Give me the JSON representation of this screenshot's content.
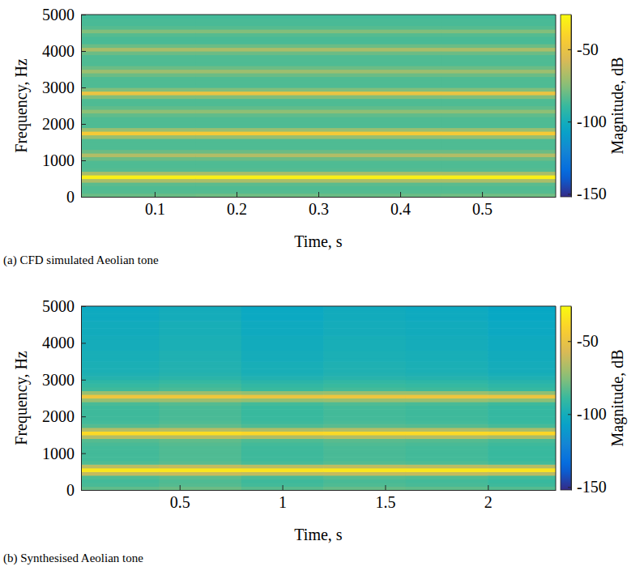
{
  "chart_data": [
    {
      "type": "heatmap",
      "caption": "(a) CFD simulated Aeolian tone",
      "x_label": "Time, s",
      "y_label": "Frequency, Hz",
      "xlim": [
        0.01,
        0.59
      ],
      "xticks": [
        0.1,
        0.2,
        0.3,
        0.4,
        0.5
      ],
      "ylim": [
        0,
        5000
      ],
      "yticks": [
        0,
        1000,
        2000,
        3000,
        4000,
        5000
      ],
      "x_edges": [
        0.01,
        0.15,
        0.3,
        0.45,
        0.59
      ],
      "y_edges": [
        0,
        100,
        200,
        300,
        400,
        500,
        600,
        700,
        800,
        900,
        1000,
        1100,
        1200,
        1300,
        1400,
        1500,
        1600,
        1700,
        1800,
        1900,
        2000,
        2100,
        2200,
        2300,
        2400,
        2500,
        2600,
        2700,
        2800,
        2900,
        3000,
        3100,
        3200,
        3300,
        3400,
        3500,
        3600,
        3700,
        3800,
        3900,
        4000,
        4100,
        4200,
        4300,
        4400,
        4500,
        4600,
        4700,
        4800,
        4900,
        5000
      ],
      "z": [
        [
          -80,
          -84,
          -85,
          -83,
          -68,
          -30,
          -68,
          -84,
          -85,
          -85,
          -80,
          -66,
          -80,
          -85,
          -85,
          -85,
          -72,
          -45,
          -72,
          -85,
          -85,
          -85,
          -82,
          -74,
          -82,
          -85,
          -85,
          -76,
          -50,
          -76,
          -85,
          -85,
          -85,
          -80,
          -71,
          -80,
          -85,
          -85,
          -85,
          -80,
          -68,
          -80,
          -86,
          -86,
          -84,
          -76,
          -84,
          -86,
          -86,
          -87
        ],
        [
          -79,
          -84,
          -85,
          -83,
          -68,
          -30,
          -68,
          -84,
          -85,
          -85,
          -80,
          -66,
          -80,
          -85,
          -85,
          -85,
          -72,
          -45,
          -72,
          -85,
          -85,
          -85,
          -82,
          -74,
          -82,
          -85,
          -85,
          -76,
          -50,
          -76,
          -85,
          -85,
          -85,
          -80,
          -71,
          -80,
          -85,
          -85,
          -85,
          -80,
          -68,
          -80,
          -86,
          -86,
          -84,
          -76,
          -84,
          -86,
          -86,
          -87
        ],
        [
          -80,
          -84,
          -85,
          -83,
          -68,
          -30,
          -68,
          -84,
          -85,
          -85,
          -80,
          -66,
          -80,
          -85,
          -85,
          -85,
          -72,
          -45,
          -72,
          -85,
          -85,
          -85,
          -82,
          -74,
          -82,
          -85,
          -85,
          -76,
          -50,
          -76,
          -85,
          -85,
          -85,
          -80,
          -71,
          -80,
          -85,
          -85,
          -85,
          -80,
          -68,
          -80,
          -86,
          -86,
          -84,
          -76,
          -84,
          -86,
          -86,
          -87
        ],
        [
          -79,
          -84,
          -85,
          -83,
          -68,
          -30,
          -68,
          -84,
          -85,
          -85,
          -80,
          -66,
          -80,
          -85,
          -85,
          -85,
          -72,
          -45,
          -72,
          -85,
          -85,
          -85,
          -82,
          -74,
          -82,
          -85,
          -85,
          -76,
          -50,
          -76,
          -85,
          -85,
          -85,
          -80,
          -71,
          -80,
          -85,
          -85,
          -85,
          -80,
          -68,
          -80,
          -86,
          -86,
          -84,
          -76,
          -84,
          -86,
          -86,
          -87
        ]
      ],
      "colorbar": {
        "label": "Magnitude, dB",
        "range": [
          -152,
          -26
        ],
        "ticks": [
          -50,
          -100,
          -150
        ]
      }
    },
    {
      "type": "heatmap",
      "caption": "(b) Synthesised Aeolian tone",
      "x_label": "Time, s",
      "y_label": "Frequency, Hz",
      "xlim": [
        0.02,
        2.33
      ],
      "xticks": [
        0.5,
        1,
        1.5,
        2
      ],
      "ylim": [
        0,
        5000
      ],
      "yticks": [
        0,
        1000,
        2000,
        3000,
        4000,
        5000
      ],
      "x_edges": [
        0.02,
        0.4,
        0.8,
        1.2,
        1.6,
        2.0,
        2.33
      ],
      "y_edges": [
        0,
        100,
        200,
        300,
        400,
        500,
        600,
        700,
        800,
        900,
        1000,
        1100,
        1200,
        1300,
        1400,
        1500,
        1600,
        1700,
        1800,
        1900,
        2000,
        2100,
        2200,
        2300,
        2400,
        2500,
        2600,
        2700,
        2800,
        2900,
        3000,
        3100,
        3200,
        3300,
        3400,
        3500,
        3600,
        3700,
        3800,
        3900,
        4000,
        4100,
        4200,
        4300,
        4400,
        4500,
        4600,
        4700,
        4800,
        4900,
        5000
      ],
      "z": [
        [
          -82,
          -86,
          -87,
          -85,
          -62,
          -33,
          -64,
          -85,
          -87,
          -87,
          -87,
          -87,
          -86,
          -84,
          -66,
          -38,
          -66,
          -84,
          -87,
          -88,
          -88,
          -88,
          -88,
          -86,
          -72,
          -48,
          -72,
          -88,
          -90,
          -92,
          -95,
          -97,
          -98,
          -98,
          -98,
          -99,
          -99,
          -99,
          -100,
          -100,
          -100,
          -100,
          -101,
          -101,
          -101,
          -101,
          -102,
          -102,
          -102,
          -103
        ],
        [
          -80,
          -84,
          -85,
          -83,
          -61,
          -33,
          -62,
          -83,
          -85,
          -85,
          -85,
          -85,
          -84,
          -82,
          -65,
          -37,
          -65,
          -82,
          -85,
          -86,
          -86,
          -86,
          -86,
          -84,
          -71,
          -47,
          -71,
          -86,
          -88,
          -90,
          -93,
          -95,
          -96,
          -96,
          -96,
          -97,
          -97,
          -97,
          -98,
          -98,
          -98,
          -98,
          -99,
          -99,
          -99,
          -99,
          -100,
          -100,
          -100,
          -101
        ],
        [
          -83,
          -87,
          -88,
          -86,
          -63,
          -34,
          -64,
          -86,
          -88,
          -88,
          -88,
          -88,
          -87,
          -85,
          -67,
          -39,
          -67,
          -85,
          -88,
          -89,
          -89,
          -89,
          -89,
          -87,
          -73,
          -49,
          -73,
          -89,
          -91,
          -93,
          -96,
          -98,
          -99,
          -99,
          -99,
          -100,
          -100,
          -100,
          -101,
          -101,
          -101,
          -101,
          -102,
          -102,
          -102,
          -102,
          -103,
          -103,
          -103,
          -104
        ],
        [
          -81,
          -85,
          -86,
          -84,
          -62,
          -33,
          -63,
          -84,
          -86,
          -86,
          -86,
          -86,
          -85,
          -83,
          -66,
          -38,
          -66,
          -83,
          -86,
          -87,
          -87,
          -87,
          -87,
          -85,
          -72,
          -48,
          -72,
          -87,
          -89,
          -91,
          -94,
          -96,
          -97,
          -97,
          -97,
          -98,
          -98,
          -98,
          -99,
          -99,
          -99,
          -99,
          -100,
          -100,
          -100,
          -100,
          -101,
          -101,
          -101,
          -102
        ],
        [
          -82,
          -86,
          -87,
          -85,
          -62,
          -33,
          -64,
          -85,
          -87,
          -87,
          -87,
          -87,
          -86,
          -84,
          -66,
          -38,
          -66,
          -84,
          -87,
          -88,
          -88,
          -88,
          -88,
          -86,
          -72,
          -48,
          -72,
          -88,
          -90,
          -92,
          -95,
          -97,
          -98,
          -98,
          -98,
          -99,
          -99,
          -99,
          -100,
          -100,
          -100,
          -100,
          -101,
          -101,
          -101,
          -101,
          -102,
          -102,
          -102,
          -103
        ],
        [
          -84,
          -88,
          -89,
          -87,
          -64,
          -34,
          -65,
          -87,
          -89,
          -89,
          -89,
          -89,
          -88,
          -86,
          -68,
          -39,
          -68,
          -86,
          -89,
          -90,
          -90,
          -90,
          -90,
          -88,
          -74,
          -49,
          -74,
          -90,
          -92,
          -94,
          -97,
          -99,
          -100,
          -100,
          -100,
          -101,
          -101,
          -101,
          -102,
          -102,
          -102,
          -102,
          -103,
          -103,
          -103,
          -103,
          -104,
          -104,
          -104,
          -105
        ]
      ],
      "colorbar": {
        "label": "Magnitude, dB",
        "range": [
          -152,
          -26
        ],
        "ticks": [
          -50,
          -100,
          -150
        ]
      }
    }
  ]
}
